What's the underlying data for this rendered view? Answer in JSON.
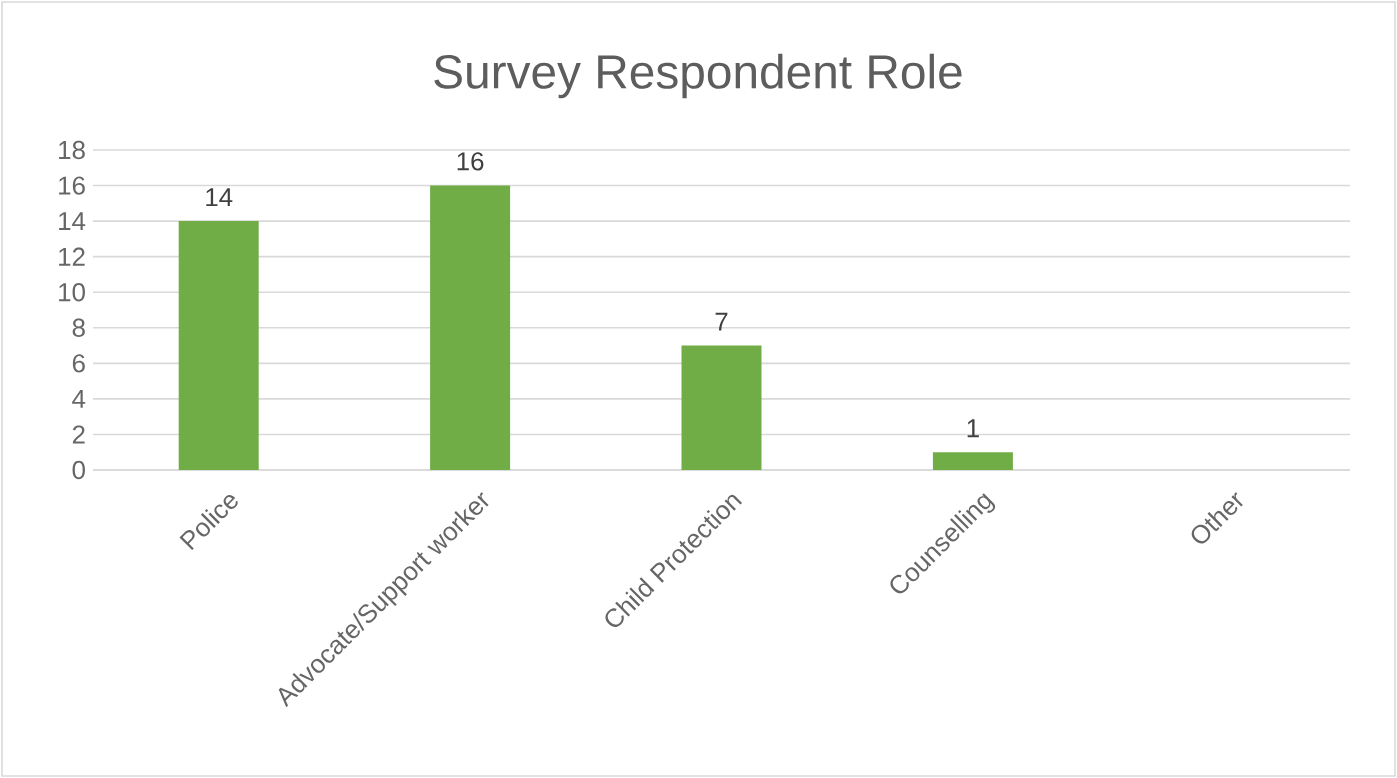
{
  "chart_data": {
    "type": "bar",
    "title": "Survey Respondent Role",
    "categories": [
      "Police",
      "Advocate/Support worker",
      "Child Protection",
      "Counselling",
      "Other"
    ],
    "values": [
      14,
      16,
      7,
      1,
      0
    ],
    "value_labels": [
      "14",
      "16",
      "7",
      "1",
      null
    ],
    "color": "#70ad47",
    "ylim": [
      0,
      18
    ],
    "yticks": [
      0,
      2,
      4,
      6,
      8,
      10,
      12,
      14,
      16,
      18
    ],
    "grid": "y"
  }
}
